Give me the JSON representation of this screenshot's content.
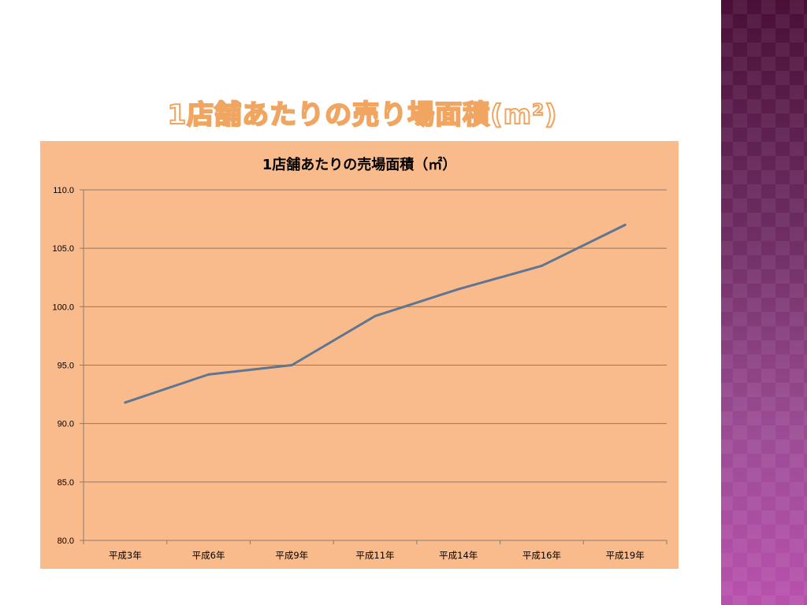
{
  "slide": {
    "title": "1店舗あたりの売り場面積(m²)"
  },
  "colors": {
    "chart_background": "#f9bb8b",
    "series_line": "#5f7592",
    "gridline": "#8c7a6e",
    "title_outline": "#f0a560",
    "side_panel_top": "#4a0f38",
    "side_panel_bottom": "#b851ad"
  },
  "chart_data": {
    "type": "line",
    "title": "1店舗あたりの売場面積（㎡）",
    "xlabel": "",
    "ylabel": "",
    "categories": [
      "平成3年",
      "平成6年",
      "平成9年",
      "平成11年",
      "平成14年",
      "平成16年",
      "平成19年"
    ],
    "series": [
      {
        "values": [
          91.8,
          94.2,
          95.0,
          99.2,
          101.5,
          103.5,
          107.0
        ]
      }
    ],
    "ylim": [
      80,
      110
    ],
    "yticks": [
      "80.0",
      "85.0",
      "90.0",
      "95.0",
      "100.0",
      "105.0",
      "110.0"
    ],
    "grid": true,
    "legend": "none"
  }
}
